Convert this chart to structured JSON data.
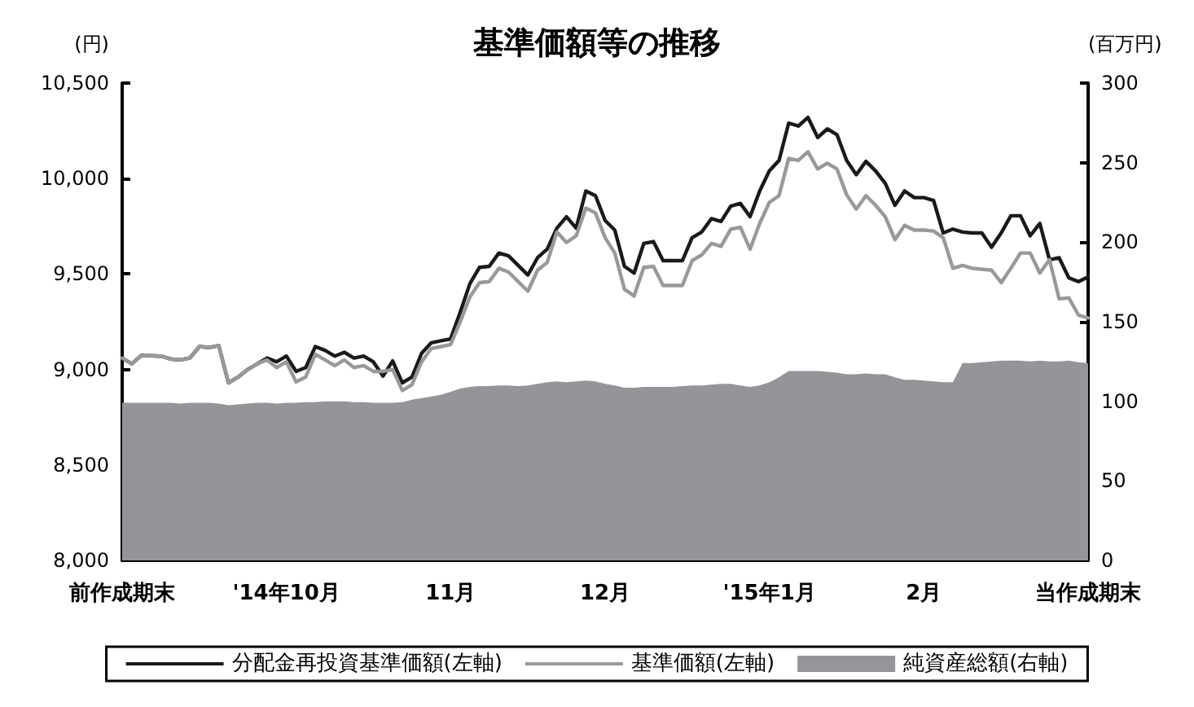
{
  "chart_data": {
    "type": "line",
    "title": "基準価額等の推移",
    "ylabel": "(円)",
    "y2label": "(百万円)",
    "categories": [
      "前作成期末",
      null,
      null,
      null,
      null,
      null,
      null,
      null,
      null,
      null,
      null,
      null,
      null,
      null,
      null,
      null,
      null,
      "'14年10月",
      null,
      null,
      null,
      null,
      null,
      null,
      null,
      null,
      null,
      null,
      null,
      null,
      null,
      null,
      null,
      null,
      "11月",
      null,
      null,
      null,
      null,
      null,
      null,
      null,
      null,
      null,
      null,
      null,
      null,
      null,
      null,
      null,
      "12月",
      null,
      null,
      null,
      null,
      null,
      null,
      null,
      null,
      null,
      null,
      null,
      null,
      null,
      null,
      null,
      null,
      "'15年1月",
      null,
      null,
      null,
      null,
      null,
      null,
      null,
      null,
      null,
      null,
      null,
      null,
      null,
      null,
      null,
      "2月",
      null,
      null,
      null,
      null,
      null,
      null,
      null,
      null,
      null,
      null,
      null,
      null,
      null,
      null,
      null,
      null,
      "当作成期末"
    ],
    "series": [
      {
        "name": "純資産総額(右軸)",
        "type": "area",
        "axis": "y2",
        "color": "#939598",
        "values": [
          99,
          99,
          99,
          99,
          99,
          99,
          98.5,
          99,
          99,
          99,
          98.5,
          97.5,
          98,
          98.5,
          99,
          99,
          98.5,
          99,
          99,
          99.5,
          99.5,
          100,
          100,
          100,
          99.5,
          99.5,
          99,
          99,
          99,
          99.5,
          101,
          102,
          103,
          104,
          106,
          108,
          109,
          109.5,
          109.5,
          110,
          110,
          109.5,
          110,
          111,
          112,
          112.5,
          112,
          112.5,
          113,
          112.5,
          111,
          110,
          108.5,
          108.5,
          109,
          109,
          109,
          109,
          109.5,
          110,
          110,
          110.5,
          111,
          111,
          110,
          109,
          110,
          112,
          115,
          119,
          119,
          119,
          119,
          118.5,
          118,
          117,
          117,
          117.5,
          117,
          117,
          115,
          113.5,
          113.5,
          113,
          112.5,
          112,
          112,
          124,
          124,
          124.5,
          125,
          125.5,
          125.5,
          125.5,
          125,
          125.5,
          125,
          125,
          125.5,
          124.5,
          124
        ]
      },
      {
        "name": "分配金再投資基準価額(左軸)",
        "color": "#1a1a1a",
        "values": [
          9060,
          9030,
          9075,
          9072,
          9070,
          9055,
          9050,
          9060,
          9120,
          9115,
          9125,
          8930,
          8960,
          9000,
          9030,
          9060,
          9040,
          9070,
          8990,
          9010,
          9120,
          9100,
          9070,
          9090,
          9060,
          9070,
          9040,
          8965,
          9045,
          8930,
          8960,
          9085,
          9140,
          9150,
          9160,
          9300,
          9450,
          9535,
          9540,
          9610,
          9595,
          9545,
          9495,
          9585,
          9630,
          9740,
          9800,
          9740,
          9935,
          9910,
          9780,
          9730,
          9540,
          9505,
          9660,
          9670,
          9570,
          9570,
          9570,
          9690,
          9720,
          9790,
          9775,
          9855,
          9870,
          9800,
          9935,
          10040,
          10095,
          10290,
          10275,
          10320,
          10215,
          10260,
          10230,
          10095,
          10020,
          10090,
          10040,
          9975,
          9860,
          9935,
          9900,
          9900,
          9885,
          9715,
          9735,
          9720,
          9715,
          9715,
          9640,
          9715,
          9805,
          9805,
          9700,
          9765,
          9575,
          9585,
          9480,
          9460,
          9485
        ]
      },
      {
        "name": "基準価額(左軸)",
        "color": "#999999",
        "values": [
          9060,
          9030,
          9075,
          9072,
          9070,
          9055,
          9050,
          9060,
          9120,
          9115,
          9125,
          8930,
          8960,
          9000,
          9030,
          9050,
          9010,
          9040,
          8935,
          8960,
          9080,
          9050,
          9020,
          9050,
          9010,
          9020,
          8990,
          8990,
          9000,
          8890,
          8920,
          9040,
          9110,
          9120,
          9130,
          9250,
          9380,
          9455,
          9460,
          9530,
          9510,
          9460,
          9410,
          9520,
          9560,
          9720,
          9665,
          9700,
          9845,
          9820,
          9690,
          9610,
          9420,
          9385,
          9535,
          9540,
          9440,
          9440,
          9440,
          9570,
          9600,
          9660,
          9645,
          9735,
          9745,
          9630,
          9765,
          9875,
          9910,
          10105,
          10095,
          10140,
          10050,
          10080,
          10050,
          9915,
          9840,
          9910,
          9860,
          9800,
          9680,
          9755,
          9730,
          9730,
          9725,
          9690,
          9530,
          9545,
          9530,
          9525,
          9520,
          9455,
          9530,
          9610,
          9610,
          9505,
          9575,
          9370,
          9375,
          9285,
          9270
        ]
      }
    ],
    "ylim": [
      8000,
      10500
    ],
    "yticks": [
      {
        "value": 8000,
        "label": "8,000"
      },
      {
        "value": 8500,
        "label": "8,500"
      },
      {
        "value": 9000,
        "label": "9,000"
      },
      {
        "value": 9500,
        "label": "9,500"
      },
      {
        "value": 10000,
        "label": "10,000"
      },
      {
        "value": 10500,
        "label": "10,500"
      }
    ],
    "y2lim": [
      0,
      300
    ],
    "y2ticks": [
      0,
      50,
      100,
      150,
      200,
      250,
      300
    ],
    "grid": false,
    "legend": "bottom",
    "marker": "none",
    "line_style": "solid"
  }
}
